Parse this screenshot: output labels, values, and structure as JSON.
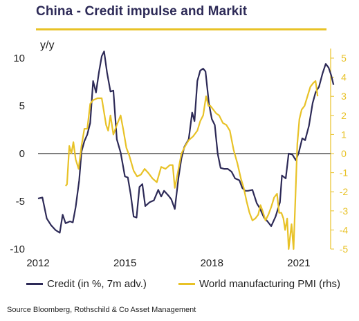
{
  "header": {
    "title": "China - Credit impulse and Markit",
    "unit_label": "y/y"
  },
  "footer": {
    "source": "Source Bloomberg, Rothschild  & Co Asset Management"
  },
  "colors": {
    "credit": "#2d2a57",
    "pmi": "#e8c227",
    "zero_line": "#7f7f7f",
    "right_axis_text": "#e8c227",
    "rule": "#e8c227"
  },
  "chart_data": {
    "type": "line",
    "title": "China - Credit impulse and Markit",
    "ylabel": "y/y",
    "xlim": [
      2012.0,
      2022.1
    ],
    "ylim_left": [
      -10,
      12
    ],
    "ylim_right": [
      -5,
      5.5
    ],
    "x_ticks": [
      2012,
      2015,
      2018,
      2021
    ],
    "x_tick_labels": [
      "2012",
      "2015",
      "2018",
      "2021"
    ],
    "y_left_ticks": [
      -10,
      -5,
      0,
      5,
      10
    ],
    "y_left_tick_labels": [
      "-10",
      "-5",
      "0",
      "5",
      "10"
    ],
    "y_right_ticks": [
      -5,
      -4,
      -3,
      -2,
      -1,
      0,
      1,
      2,
      3,
      4,
      5
    ],
    "y_right_tick_labels": [
      "-5",
      "-4",
      "-3",
      "-2",
      "-1",
      "0",
      "1",
      "2",
      "3",
      "4",
      "5"
    ],
    "zero_line": 0,
    "grid": false,
    "legend_position": "bottom",
    "series": [
      {
        "name": "Credit (in %, 7m adv.)",
        "axis": "left",
        "points": [
          [
            2012.0,
            -4.7
          ],
          [
            2012.15,
            -4.6
          ],
          [
            2012.3,
            -6.8
          ],
          [
            2012.45,
            -7.5
          ],
          [
            2012.6,
            -8.0
          ],
          [
            2012.75,
            -8.3
          ],
          [
            2012.85,
            -6.4
          ],
          [
            2012.95,
            -7.3
          ],
          [
            2013.1,
            -7.1
          ],
          [
            2013.2,
            -7.2
          ],
          [
            2013.3,
            -5.6
          ],
          [
            2013.42,
            -2.8
          ],
          [
            2013.5,
            0.2
          ],
          [
            2013.6,
            1.3
          ],
          [
            2013.7,
            2.0
          ],
          [
            2013.8,
            3.2
          ],
          [
            2013.9,
            7.6
          ],
          [
            2014.0,
            6.4
          ],
          [
            2014.1,
            8.5
          ],
          [
            2014.2,
            10.2
          ],
          [
            2014.28,
            10.7
          ],
          [
            2014.38,
            8.5
          ],
          [
            2014.5,
            6.5
          ],
          [
            2014.6,
            6.6
          ],
          [
            2014.72,
            1.5
          ],
          [
            2014.85,
            0.1
          ],
          [
            2015.0,
            -2.4
          ],
          [
            2015.1,
            -2.5
          ],
          [
            2015.2,
            -4.3
          ],
          [
            2015.3,
            -6.6
          ],
          [
            2015.4,
            -6.7
          ],
          [
            2015.5,
            -3.5
          ],
          [
            2015.6,
            -3.2
          ],
          [
            2015.7,
            -5.5
          ],
          [
            2015.85,
            -5.1
          ],
          [
            2016.0,
            -4.9
          ],
          [
            2016.15,
            -3.8
          ],
          [
            2016.25,
            -4.5
          ],
          [
            2016.35,
            -3.9
          ],
          [
            2016.5,
            -4.4
          ],
          [
            2016.6,
            -4.8
          ],
          [
            2016.72,
            -5.8
          ],
          [
            2016.85,
            -2.5
          ],
          [
            2016.95,
            -0.5
          ],
          [
            2017.05,
            0.7
          ],
          [
            2017.2,
            1.5
          ],
          [
            2017.32,
            4.3
          ],
          [
            2017.4,
            3.4
          ],
          [
            2017.5,
            7.6
          ],
          [
            2017.6,
            8.7
          ],
          [
            2017.7,
            8.9
          ],
          [
            2017.78,
            8.6
          ],
          [
            2017.9,
            5.2
          ],
          [
            2018.0,
            3.6
          ],
          [
            2018.1,
            3.0
          ],
          [
            2018.2,
            0.0
          ],
          [
            2018.3,
            -1.5
          ],
          [
            2018.42,
            -1.6
          ],
          [
            2018.55,
            -1.6
          ],
          [
            2018.68,
            -1.9
          ],
          [
            2018.8,
            -2.6
          ],
          [
            2018.95,
            -2.8
          ],
          [
            2019.05,
            -3.6
          ],
          [
            2019.15,
            -3.9
          ],
          [
            2019.25,
            -3.9
          ],
          [
            2019.4,
            -3.8
          ],
          [
            2019.55,
            -5.2
          ],
          [
            2019.65,
            -5.7
          ],
          [
            2019.8,
            -6.7
          ],
          [
            2019.92,
            -7.1
          ],
          [
            2020.05,
            -7.6
          ],
          [
            2020.2,
            -6.6
          ],
          [
            2020.35,
            -5.1
          ],
          [
            2020.42,
            -2.3
          ],
          [
            2020.55,
            -2.6
          ],
          [
            2020.65,
            0.0
          ],
          [
            2020.78,
            -0.1
          ],
          [
            2020.9,
            -0.7
          ],
          [
            2021.0,
            0.1
          ],
          [
            2021.12,
            1.6
          ],
          [
            2021.22,
            1.4
          ],
          [
            2021.35,
            2.9
          ],
          [
            2021.48,
            5.3
          ],
          [
            2021.58,
            6.4
          ],
          [
            2021.7,
            7.0
          ],
          [
            2021.82,
            8.4
          ],
          [
            2021.93,
            9.4
          ],
          [
            2022.03,
            9.0
          ],
          [
            2022.12,
            8.2
          ],
          [
            2022.2,
            7.2
          ]
        ]
      },
      {
        "name": "World manufacturing PMI (rhs)",
        "axis": "right",
        "points": [
          [
            2012.95,
            -1.7
          ],
          [
            2013.0,
            -1.6
          ],
          [
            2013.08,
            0.4
          ],
          [
            2013.15,
            0.0
          ],
          [
            2013.22,
            0.6
          ],
          [
            2013.3,
            -0.3
          ],
          [
            2013.4,
            -0.8
          ],
          [
            2013.5,
            0.4
          ],
          [
            2013.6,
            1.3
          ],
          [
            2013.7,
            1.3
          ],
          [
            2013.8,
            2.6
          ],
          [
            2013.9,
            2.8
          ],
          [
            2014.05,
            2.9
          ],
          [
            2014.2,
            2.9
          ],
          [
            2014.35,
            1.5
          ],
          [
            2014.42,
            1.2
          ],
          [
            2014.5,
            2.0
          ],
          [
            2014.6,
            1.0
          ],
          [
            2014.72,
            1.5
          ],
          [
            2014.85,
            2.0
          ],
          [
            2014.95,
            1.2
          ],
          [
            2015.05,
            0.3
          ],
          [
            2015.15,
            -0.1
          ],
          [
            2015.3,
            -0.9
          ],
          [
            2015.42,
            -1.2
          ],
          [
            2015.55,
            -1.1
          ],
          [
            2015.68,
            -0.8
          ],
          [
            2015.8,
            -1.0
          ],
          [
            2015.95,
            -1.3
          ],
          [
            2016.1,
            -1.5
          ],
          [
            2016.25,
            -0.7
          ],
          [
            2016.4,
            -0.8
          ],
          [
            2016.55,
            -0.6
          ],
          [
            2016.65,
            -0.6
          ],
          [
            2016.72,
            -1.8
          ],
          [
            2016.85,
            -0.8
          ],
          [
            2016.95,
            0.0
          ],
          [
            2017.08,
            0.4
          ],
          [
            2017.2,
            0.7
          ],
          [
            2017.35,
            0.9
          ],
          [
            2017.5,
            1.2
          ],
          [
            2017.6,
            1.7
          ],
          [
            2017.7,
            2.0
          ],
          [
            2017.8,
            3.0
          ],
          [
            2017.88,
            2.5
          ],
          [
            2017.95,
            2.5
          ],
          [
            2018.05,
            2.3
          ],
          [
            2018.15,
            2.1
          ],
          [
            2018.25,
            2.0
          ],
          [
            2018.38,
            1.6
          ],
          [
            2018.5,
            1.5
          ],
          [
            2018.62,
            1.2
          ],
          [
            2018.75,
            0.2
          ],
          [
            2018.88,
            -0.5
          ],
          [
            2019.0,
            -1.3
          ],
          [
            2019.1,
            -1.8
          ],
          [
            2019.2,
            -2.5
          ],
          [
            2019.3,
            -3.1
          ],
          [
            2019.4,
            -3.5
          ],
          [
            2019.5,
            -3.4
          ],
          [
            2019.6,
            -3.2
          ],
          [
            2019.68,
            -2.7
          ],
          [
            2019.75,
            -3.0
          ],
          [
            2019.85,
            -3.5
          ],
          [
            2019.95,
            -3.2
          ],
          [
            2020.05,
            -2.8
          ],
          [
            2020.15,
            -2.3
          ],
          [
            2020.25,
            -2.1
          ],
          [
            2020.32,
            -3.1
          ],
          [
            2020.4,
            -3.1
          ],
          [
            2020.47,
            -3.4
          ],
          [
            2020.53,
            -4.0
          ],
          [
            2020.6,
            -3.4
          ],
          [
            2020.65,
            -5.0
          ],
          [
            2020.75,
            -3.7
          ],
          [
            2020.82,
            -5.0
          ],
          [
            2020.88,
            -2.5
          ],
          [
            2020.95,
            0.5
          ],
          [
            2021.02,
            1.8
          ],
          [
            2021.1,
            2.3
          ],
          [
            2021.2,
            2.5
          ],
          [
            2021.3,
            3.0
          ],
          [
            2021.4,
            3.5
          ],
          [
            2021.5,
            3.7
          ],
          [
            2021.58,
            3.8
          ],
          [
            2021.65,
            3.0
          ]
        ]
      }
    ]
  }
}
